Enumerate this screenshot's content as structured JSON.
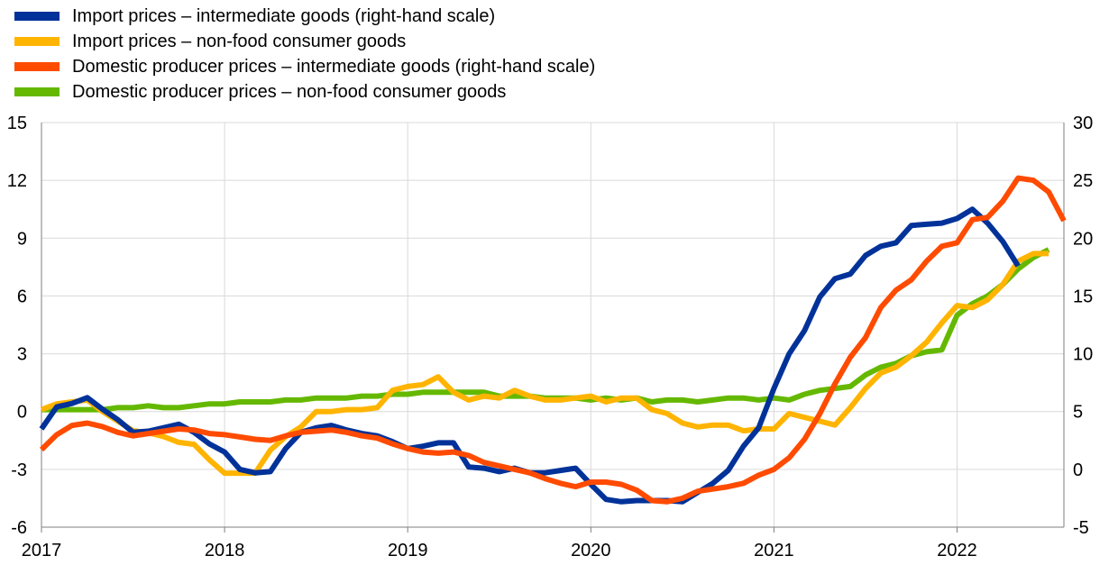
{
  "chart_data": {
    "type": "line",
    "title": "",
    "xlabel": "",
    "ylabel": "",
    "x_tick_labels": [
      "2017",
      "2018",
      "2019",
      "2020",
      "2021",
      "2022"
    ],
    "x_range": [
      2017.0,
      2022.5833
    ],
    "ylim_left": [
      -6,
      15
    ],
    "ylim_right": [
      -5,
      30
    ],
    "y_left_ticks": [
      -6,
      -3,
      0,
      3,
      6,
      9,
      12,
      15
    ],
    "y_right_ticks": [
      -5,
      0,
      5,
      10,
      15,
      20,
      25,
      30
    ],
    "grid": "vertical lines at years, horizontal lines at left-axis ticks",
    "legend_position": "top-left",
    "series": [
      {
        "name": "Import prices – intermediate goods (right-hand scale)",
        "axis": "right",
        "color": "#003299",
        "x_start": 2017.0,
        "values": [
          3.5,
          5.4,
          5.7,
          6.2,
          5.2,
          4.3,
          3.2,
          3.3,
          3.6,
          3.9,
          3.2,
          2.2,
          1.5,
          0.0,
          -0.3,
          -0.2,
          1.8,
          3.2,
          3.6,
          3.8,
          3.4,
          3.1,
          2.9,
          2.4,
          1.8,
          2.0,
          2.3,
          2.3,
          0.2,
          0.1,
          -0.2,
          0.1,
          -0.3,
          -0.3,
          -0.1,
          0.1,
          -1.3,
          -2.6,
          -2.8,
          -2.7,
          -2.7,
          -2.7,
          -2.8,
          -2.0,
          -1.2,
          -0.1,
          2.0,
          3.6,
          7.0,
          10.0,
          12.0,
          14.9,
          16.5,
          16.9,
          18.5,
          19.3,
          19.6,
          21.1,
          21.2,
          21.3,
          21.7,
          22.5,
          21.3,
          19.7,
          17.6
        ]
      },
      {
        "name": "Import prices – non-food consumer goods",
        "axis": "left",
        "color": "#ffb400",
        "x_start": 2017.0,
        "values": [
          0.1,
          0.4,
          0.5,
          0.6,
          0.0,
          -0.5,
          -1.0,
          -1.1,
          -1.3,
          -1.6,
          -1.7,
          -2.5,
          -3.2,
          -3.2,
          -3.2,
          -2.0,
          -1.3,
          -0.8,
          0.0,
          0.0,
          0.1,
          0.1,
          0.2,
          1.1,
          1.3,
          1.4,
          1.8,
          1.0,
          0.6,
          0.8,
          0.7,
          1.1,
          0.8,
          0.6,
          0.6,
          0.7,
          0.8,
          0.5,
          0.7,
          0.7,
          0.1,
          -0.1,
          -0.6,
          -0.8,
          -0.7,
          -0.7,
          -1.0,
          -0.9,
          -0.9,
          -0.1,
          -0.3,
          -0.5,
          -0.7,
          0.2,
          1.2,
          2.0,
          2.3,
          2.9,
          3.6,
          4.6,
          5.5,
          5.4,
          5.8,
          6.6,
          7.8,
          8.2,
          8.2
        ]
      },
      {
        "name": "Domestic producer prices – intermediate goods (right-hand scale)",
        "axis": "right",
        "color": "#ff4b00",
        "x_start": 2017.0,
        "values": [
          1.7,
          3.0,
          3.8,
          4.0,
          3.7,
          3.2,
          2.9,
          3.1,
          3.3,
          3.5,
          3.4,
          3.1,
          3.0,
          2.8,
          2.6,
          2.5,
          2.9,
          3.2,
          3.3,
          3.4,
          3.2,
          2.9,
          2.7,
          2.2,
          1.8,
          1.5,
          1.4,
          1.5,
          1.2,
          0.6,
          0.3,
          0.0,
          -0.3,
          -0.8,
          -1.2,
          -1.5,
          -1.1,
          -1.1,
          -1.3,
          -1.8,
          -2.7,
          -2.8,
          -2.5,
          -1.9,
          -1.7,
          -1.5,
          -1.2,
          -0.5,
          0.0,
          1.0,
          2.6,
          4.8,
          7.4,
          9.7,
          11.4,
          14.0,
          15.5,
          16.4,
          18.0,
          19.3,
          19.6,
          21.6,
          21.8,
          23.2,
          25.2,
          25.0,
          24.0,
          21.5
        ]
      },
      {
        "name": "Domestic producer prices – non-food consumer goods",
        "axis": "left",
        "color": "#65b800",
        "x_start": 2017.0,
        "values": [
          0.1,
          0.1,
          0.1,
          0.1,
          0.1,
          0.2,
          0.2,
          0.3,
          0.2,
          0.2,
          0.3,
          0.4,
          0.4,
          0.5,
          0.5,
          0.5,
          0.6,
          0.6,
          0.7,
          0.7,
          0.7,
          0.8,
          0.8,
          0.9,
          0.9,
          1.0,
          1.0,
          1.0,
          1.0,
          1.0,
          0.8,
          0.8,
          0.8,
          0.7,
          0.7,
          0.7,
          0.6,
          0.7,
          0.6,
          0.7,
          0.5,
          0.6,
          0.6,
          0.5,
          0.6,
          0.7,
          0.7,
          0.6,
          0.7,
          0.6,
          0.9,
          1.1,
          1.2,
          1.3,
          1.9,
          2.3,
          2.5,
          2.9,
          3.1,
          3.2,
          5.0,
          5.6,
          6.0,
          6.6,
          7.4,
          8.0,
          8.4
        ]
      }
    ]
  }
}
